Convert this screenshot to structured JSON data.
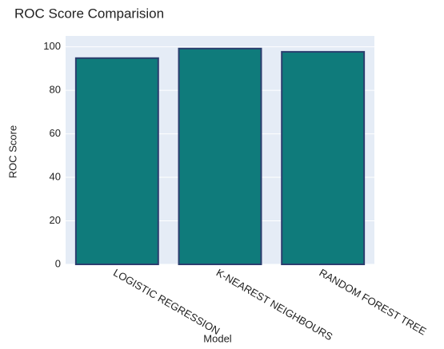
{
  "chart_data": {
    "type": "bar",
    "title": "ROC Score Comparision",
    "x_label": "Model",
    "y_label": "ROC Score",
    "categories": [
      "LOGISTIC REGRESSION",
      "K-NEAREST NEIGHBOURS",
      "RANDOM FOREST TREE"
    ],
    "values": [
      94.8,
      99.2,
      97.7
    ],
    "color": "#0f7b7b",
    "edge_color": "#2b3d6e",
    "ylim": [
      0,
      105
    ],
    "yticks": [
      0,
      20,
      40,
      60,
      80,
      100
    ],
    "grid": true
  }
}
